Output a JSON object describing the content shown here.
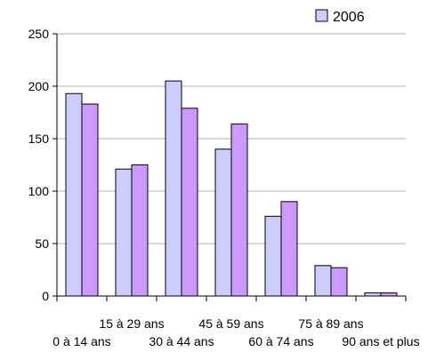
{
  "chart_data": {
    "type": "bar",
    "categories": [
      "0 à 14 ans",
      "15 à 29 ans",
      "30 à 44 ans",
      "45 à 59 ans",
      "60 à 74 ans",
      "75 à 89 ans",
      "90 ans et plus"
    ],
    "series": [
      {
        "name": "2006",
        "values": [
          193,
          121,
          205,
          140,
          76,
          29,
          3
        ],
        "color": "#ccccff"
      },
      {
        "values": [
          183,
          125,
          179,
          164,
          90,
          27,
          3
        ],
        "color": "#cc99ff"
      }
    ],
    "ylim": [
      0,
      250
    ],
    "yticks": [
      0,
      50,
      100,
      150,
      200,
      250
    ],
    "grid": true,
    "legend_position": "top-right",
    "grid_color": "#b3b3b3",
    "edge_color": "#000000"
  }
}
